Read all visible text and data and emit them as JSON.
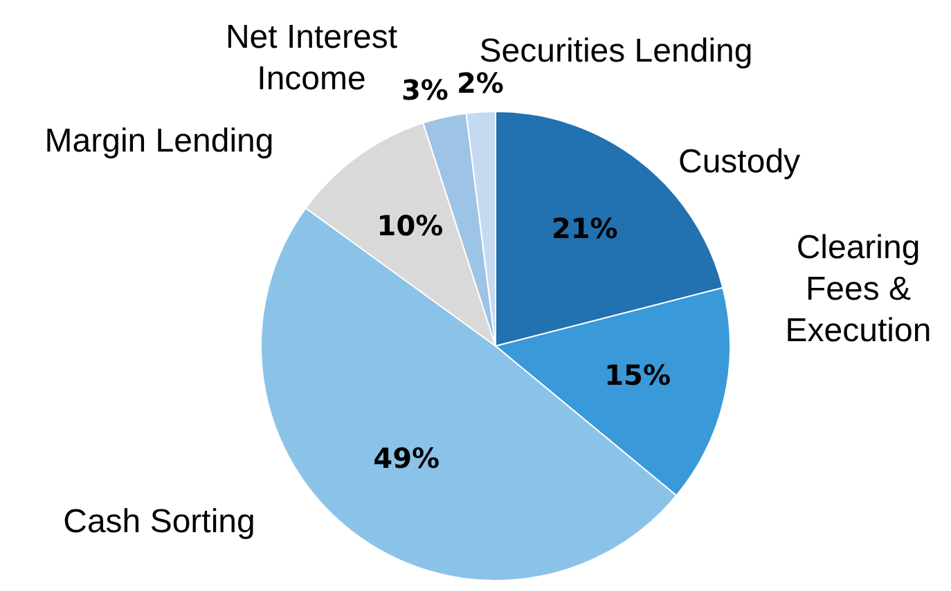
{
  "chart_data": {
    "type": "pie",
    "categories": [
      "Custody",
      "Clearing Fees & Execution",
      "Cash Sorting",
      "Margin Lending",
      "Net Interest Income",
      "Securities Lending"
    ],
    "values": [
      21,
      15,
      49,
      10,
      3,
      2
    ],
    "colors": [
      "#2271b1",
      "#3a99d8",
      "#8bc3e8",
      "#d9d9d9",
      "#9dc3e6",
      "#c5daf0"
    ],
    "value_labels": [
      "21%",
      "15%",
      "49%",
      "10%",
      "3%",
      "2%"
    ],
    "legend": false
  }
}
